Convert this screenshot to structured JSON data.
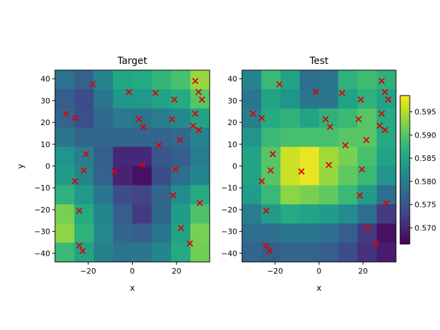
{
  "chart_data": [
    {
      "type": "heatmap",
      "title": "Target",
      "xlabel": "x",
      "ylabel": "y",
      "xlim": [
        -35,
        35
      ],
      "ylim": [
        -44,
        44
      ],
      "xticks": [
        -20,
        0,
        20
      ],
      "xtick_labels": [
        "−20",
        "0",
        "20"
      ],
      "yticks": [
        40,
        30,
        20,
        10,
        0,
        -10,
        -20,
        -30,
        -40
      ],
      "ytick_labels": [
        "40",
        "30",
        "20",
        "10",
        "0",
        "−10",
        "−20",
        "−30",
        "−40"
      ],
      "grid": false,
      "cell_rows_note": "rows listed from top (y=44) to bottom (y=-44); 8 columns from x=-35 to 35",
      "values": [
        [
          0.5785,
          0.5765,
          0.5808,
          0.5855,
          0.5858,
          0.5875,
          0.5892,
          0.5935
        ],
        [
          0.576,
          0.574,
          0.579,
          0.5832,
          0.5835,
          0.5848,
          0.586,
          0.59
        ],
        [
          0.577,
          0.5742,
          0.5775,
          0.5795,
          0.579,
          0.58,
          0.5815,
          0.585
        ],
        [
          0.579,
          0.577,
          0.577,
          0.577,
          0.577,
          0.5768,
          0.5775,
          0.581
        ],
        [
          0.583,
          0.58,
          0.576,
          0.57,
          0.57,
          0.575,
          0.576,
          0.58
        ],
        [
          0.584,
          0.581,
          0.5765,
          0.5695,
          0.568,
          0.574,
          0.578,
          0.581
        ],
        [
          0.587,
          0.5835,
          0.579,
          0.574,
          0.573,
          0.577,
          0.582,
          0.586
        ],
        [
          0.592,
          0.586,
          0.581,
          0.576,
          0.572,
          0.577,
          0.584,
          0.5895
        ],
        [
          0.593,
          0.587,
          0.5815,
          0.577,
          0.576,
          0.579,
          0.585,
          0.592
        ],
        [
          0.588,
          0.585,
          0.5805,
          0.5785,
          0.579,
          0.581,
          0.586,
          0.5915
        ]
      ],
      "markers": {
        "symbol": "x",
        "color": "#dd0000"
      },
      "points": [
        [
          -18,
          37.5
        ],
        [
          -1.5,
          34
        ],
        [
          10.5,
          33.5
        ],
        [
          28.5,
          39
        ],
        [
          30,
          34
        ],
        [
          31.5,
          30.5
        ],
        [
          19,
          30.5
        ],
        [
          -30,
          24
        ],
        [
          -26,
          22
        ],
        [
          3,
          21.5
        ],
        [
          5,
          18
        ],
        [
          18,
          21.5
        ],
        [
          28.5,
          24
        ],
        [
          27.5,
          18.5
        ],
        [
          30,
          16.5
        ],
        [
          12,
          9.5
        ],
        [
          21.5,
          12
        ],
        [
          -21,
          5.5
        ],
        [
          -22,
          -2
        ],
        [
          -8,
          -2.5
        ],
        [
          4.5,
          0.5
        ],
        [
          19.5,
          -1.5
        ],
        [
          -26,
          -7
        ],
        [
          18.5,
          -13.5
        ],
        [
          30.5,
          -17
        ],
        [
          -24,
          -20.5
        ],
        [
          22,
          -28.5
        ],
        [
          -24,
          -36.5
        ],
        [
          -22.5,
          -39
        ],
        [
          26,
          -35.5
        ]
      ]
    },
    {
      "type": "heatmap",
      "title": "Test",
      "xlabel": "x",
      "ylabel": "",
      "xlim": [
        -35,
        35
      ],
      "ylim": [
        -44,
        44
      ],
      "xticks": [
        -20,
        0,
        20
      ],
      "xtick_labels": [
        "−20",
        "0",
        "20"
      ],
      "yticks": [
        40,
        30,
        20,
        10,
        0,
        -10,
        -20,
        -30,
        -40
      ],
      "ytick_labels": [
        "40",
        "30",
        "20",
        "10",
        "0",
        "−10",
        "−20",
        "−30",
        "−40"
      ],
      "grid": false,
      "values": [
        [
          0.581,
          0.588,
          0.585,
          0.578,
          0.579,
          0.587,
          0.5885,
          0.587
        ],
        [
          0.579,
          0.585,
          0.583,
          0.579,
          0.579,
          0.585,
          0.587,
          0.585
        ],
        [
          0.58,
          0.586,
          0.587,
          0.585,
          0.587,
          0.588,
          0.59,
          0.586
        ],
        [
          0.583,
          0.588,
          0.589,
          0.589,
          0.589,
          0.59,
          0.59,
          0.586
        ],
        [
          0.585,
          0.59,
          0.596,
          0.5975,
          0.594,
          0.592,
          0.589,
          0.585
        ],
        [
          0.585,
          0.59,
          0.596,
          0.5975,
          0.5935,
          0.5905,
          0.588,
          0.583
        ],
        [
          0.584,
          0.588,
          0.593,
          0.592,
          0.5905,
          0.588,
          0.584,
          0.578
        ],
        [
          0.58,
          0.584,
          0.586,
          0.585,
          0.584,
          0.582,
          0.578,
          0.572
        ],
        [
          0.578,
          0.578,
          0.579,
          0.579,
          0.578,
          0.576,
          0.572,
          0.568
        ],
        [
          0.577,
          0.576,
          0.577,
          0.577,
          0.576,
          0.574,
          0.571,
          0.569
        ]
      ],
      "markers": {
        "symbol": "x",
        "color": "#dd0000"
      },
      "points": [
        [
          -18,
          37.5
        ],
        [
          -1.5,
          34
        ],
        [
          10.5,
          33.5
        ],
        [
          28.5,
          39
        ],
        [
          30,
          34
        ],
        [
          31.5,
          30.5
        ],
        [
          19,
          30.5
        ],
        [
          -30,
          24
        ],
        [
          -26,
          22
        ],
        [
          3,
          21.5
        ],
        [
          5,
          18
        ],
        [
          18,
          21.5
        ],
        [
          28.5,
          24
        ],
        [
          27.5,
          18.5
        ],
        [
          30,
          16.5
        ],
        [
          12,
          9.5
        ],
        [
          21.5,
          12
        ],
        [
          -21,
          5.5
        ],
        [
          -22,
          -2
        ],
        [
          -8,
          -2.5
        ],
        [
          4.5,
          0.5
        ],
        [
          19.5,
          -1.5
        ],
        [
          -26,
          -7
        ],
        [
          18.5,
          -13.5
        ],
        [
          30.5,
          -17
        ],
        [
          -24,
          -20.5
        ],
        [
          22,
          -28.5
        ],
        [
          -24,
          -36.5
        ],
        [
          -22.5,
          -39
        ],
        [
          26,
          -35.5
        ]
      ]
    }
  ],
  "colorbar": {
    "colormap": "viridis",
    "vmin": 0.5665,
    "vmax": 0.5985,
    "ticks": [
      0.57,
      0.575,
      0.58,
      0.585,
      0.59,
      0.595
    ],
    "tick_labels": [
      "0.570",
      "0.575",
      "0.580",
      "0.585",
      "0.590",
      "0.595"
    ]
  }
}
